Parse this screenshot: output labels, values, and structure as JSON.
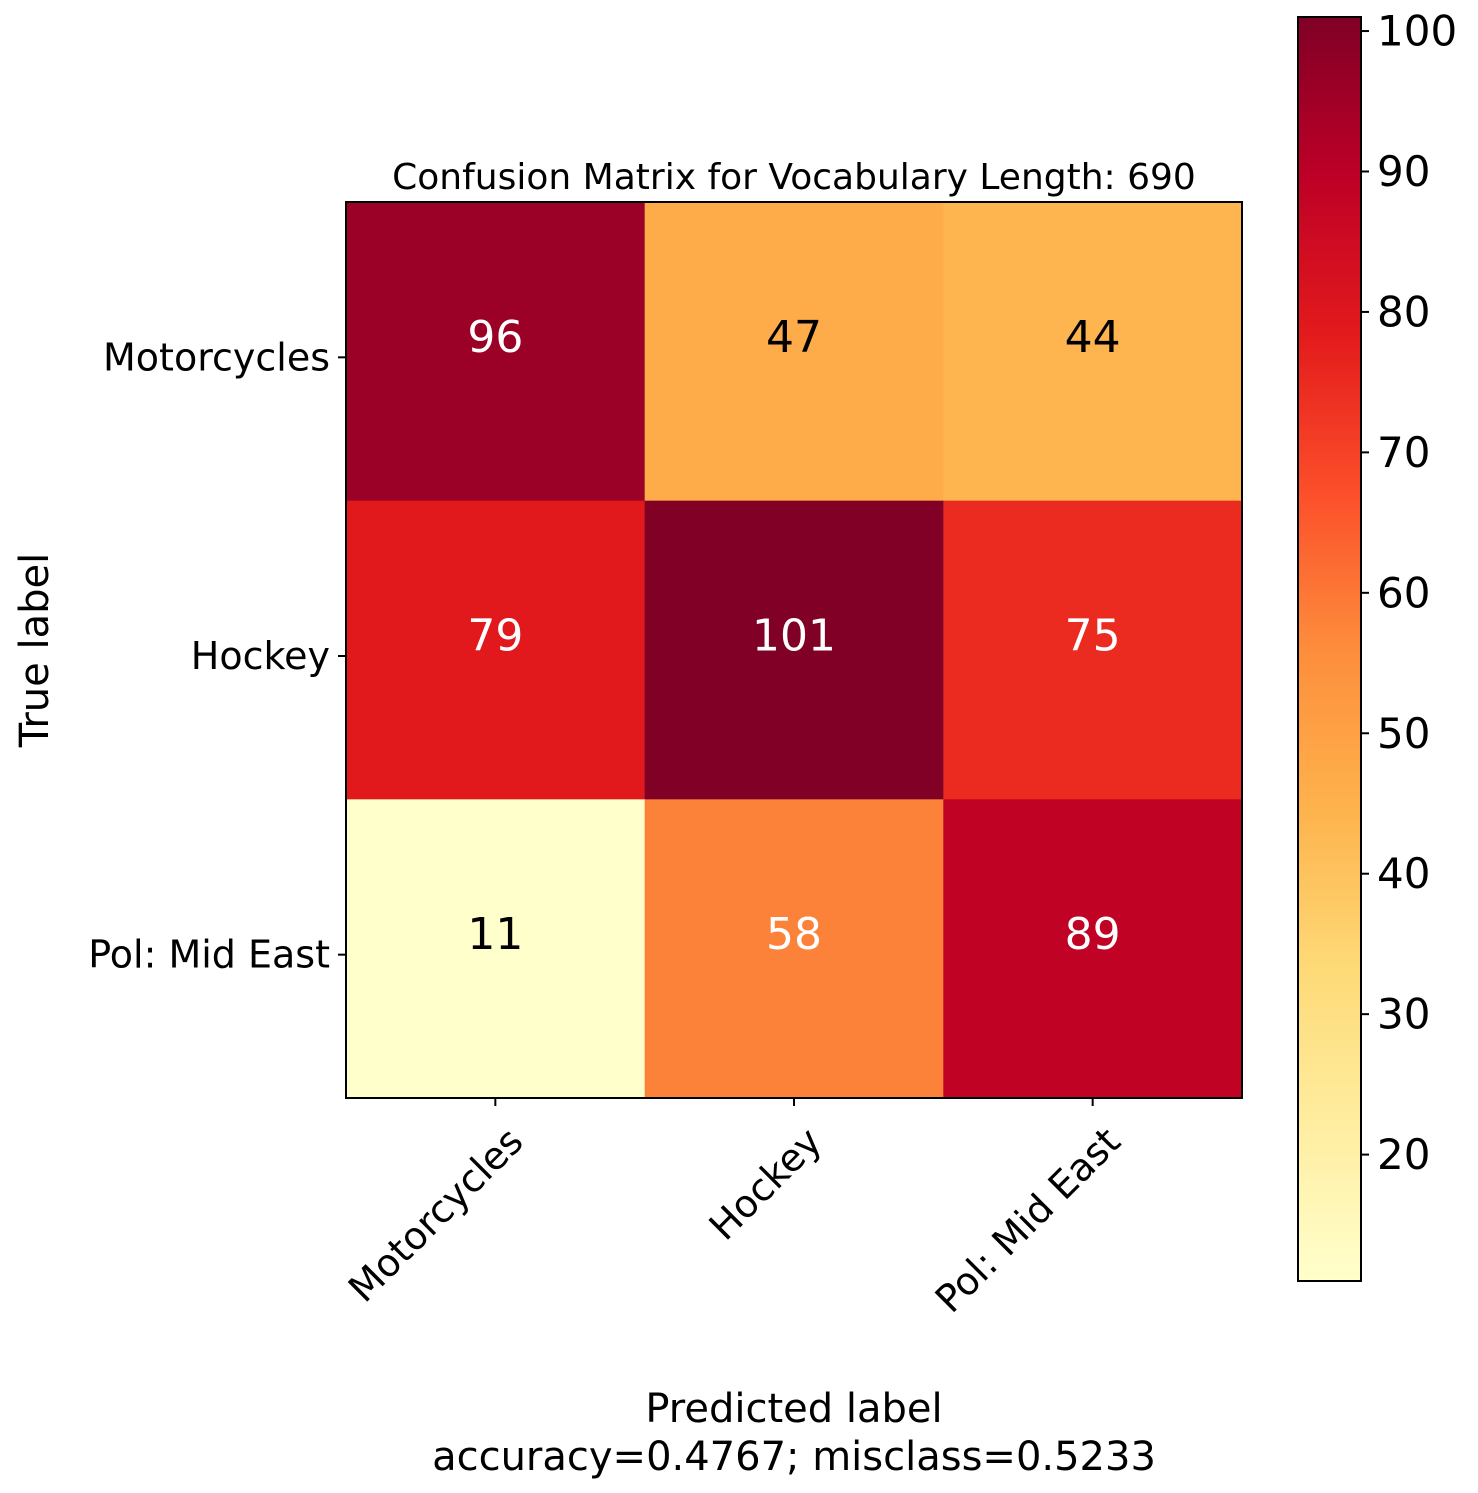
{
  "chart_data": {
    "type": "heatmap",
    "title": "Confusion Matrix for Vocabulary Length: 690",
    "xlabel": "Predicted label",
    "xlabel_sub": "accuracy=0.4767; misclass=0.5233",
    "ylabel": "True label",
    "x_categories": [
      "Motorcycles",
      "Hockey",
      "Pol: Mid East"
    ],
    "y_categories": [
      "Motorcycles",
      "Hockey",
      "Pol: Mid East"
    ],
    "values": [
      [
        96,
        47,
        44
      ],
      [
        79,
        101,
        75
      ],
      [
        11,
        58,
        89
      ]
    ],
    "colormap": "YlOrRd",
    "color_range": [
      11,
      101
    ],
    "colorbar_ticks": [
      20,
      30,
      40,
      50,
      60,
      70,
      80,
      90,
      100
    ],
    "grid": false
  }
}
